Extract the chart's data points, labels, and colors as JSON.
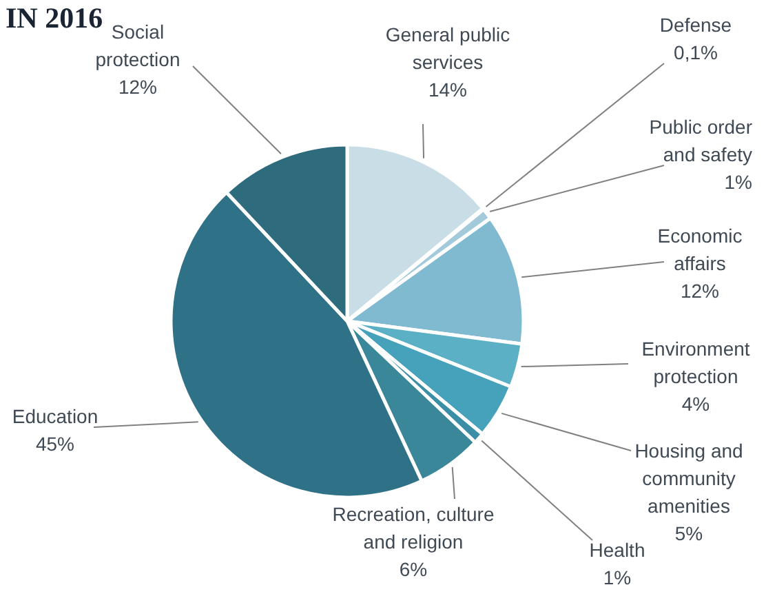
{
  "chart_data": {
    "type": "pie",
    "title": "IN 2016",
    "categories": [
      "General public services",
      "Defense",
      "Public order and safety",
      "Economic affairs",
      "Environment protection",
      "Housing and community amenities",
      "Health",
      "Recreation, culture and religion",
      "Education",
      "Social protection"
    ],
    "values": [
      14,
      0.1,
      1,
      12,
      4,
      5,
      1,
      6,
      45,
      12
    ],
    "value_labels": [
      "14%",
      "0,1%",
      "1%",
      "12%",
      "4%",
      "5%",
      "1%",
      "6%",
      "45%",
      "12%"
    ],
    "colors": [
      "#c8dde6",
      "#b3d3df",
      "#a3cadb",
      "#80bad0",
      "#5cb0c6",
      "#46a2bb",
      "#3a8ea5",
      "#3a8799",
      "#2f7287",
      "#2d6b7d"
    ]
  }
}
